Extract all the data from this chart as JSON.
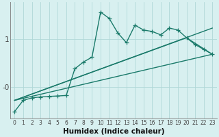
{
  "xlabel": "Humidex (Indice chaleur)",
  "bg_color": "#d8f0f0",
  "grid_color": "#b0d8d8",
  "line_color": "#1a7a6a",
  "xlim": [
    -0.5,
    23.5
  ],
  "ylim": [
    -0.65,
    1.75
  ],
  "ytick_vals": [
    0.0,
    1.0
  ],
  "ytick_labels": [
    "-0",
    "1"
  ],
  "xticks": [
    0,
    1,
    2,
    3,
    4,
    5,
    6,
    7,
    8,
    9,
    10,
    11,
    12,
    13,
    14,
    15,
    16,
    17,
    18,
    19,
    20,
    21,
    22,
    23
  ],
  "series": [
    {
      "x": [
        0,
        1,
        2,
        3,
        4,
        5,
        6,
        7,
        8,
        9,
        10,
        11,
        12,
        13,
        14,
        15,
        16,
        17,
        18,
        19,
        20,
        21,
        22,
        23
      ],
      "y": [
        -0.5,
        -0.27,
        -0.22,
        -0.2,
        -0.19,
        -0.18,
        -0.17,
        0.38,
        0.52,
        0.62,
        1.55,
        1.42,
        1.12,
        0.92,
        1.28,
        1.18,
        1.15,
        1.08,
        1.22,
        1.18,
        1.02,
        0.88,
        0.78,
        0.68
      ],
      "marker": "+",
      "linewidth": 1.0,
      "markersize": 4
    },
    {
      "x": [
        0,
        23
      ],
      "y": [
        -0.27,
        1.22
      ],
      "marker": null,
      "linewidth": 1.0
    },
    {
      "x": [
        0,
        20,
        23
      ],
      "y": [
        -0.27,
        1.02,
        0.68
      ],
      "marker": null,
      "linewidth": 1.0
    },
    {
      "x": [
        0,
        23
      ],
      "y": [
        -0.27,
        0.68
      ],
      "marker": null,
      "linewidth": 1.0
    }
  ]
}
